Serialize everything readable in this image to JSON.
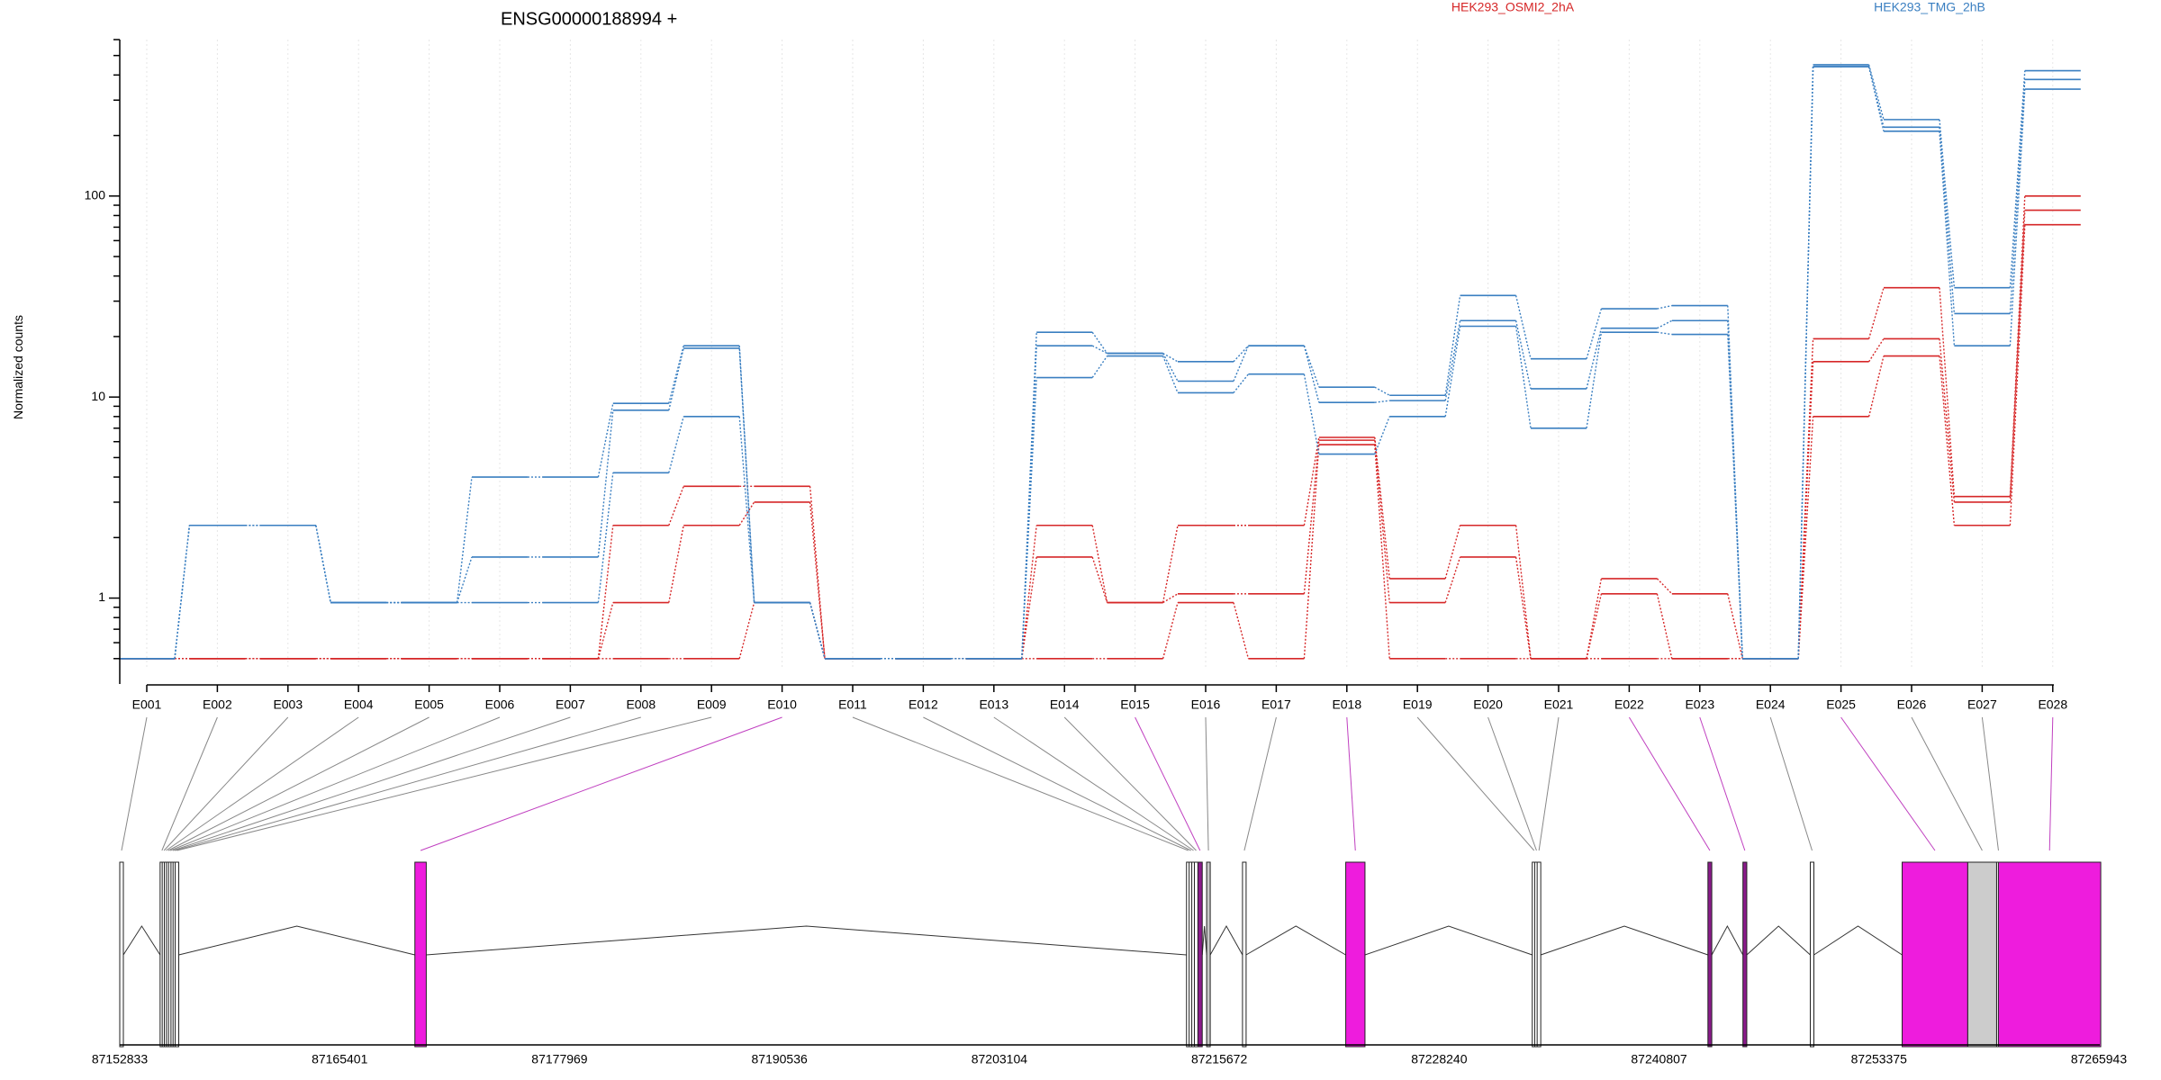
{
  "chart_data": {
    "type": "line",
    "title": "ENSG00000188994 +",
    "ylabel": "Normalized counts",
    "yscale": "log",
    "ylim": [
      0.45,
      600
    ],
    "yticks": [
      1,
      10,
      100
    ],
    "ytick_labels": [
      "1",
      "10",
      "100"
    ],
    "categories": [
      "E001",
      "E002",
      "E003",
      "E004",
      "E005",
      "E006",
      "E007",
      "E008",
      "E009",
      "E010",
      "E011",
      "E012",
      "E013",
      "E014",
      "E015",
      "E016",
      "E017",
      "E018",
      "E019",
      "E020",
      "E021",
      "E022",
      "E023",
      "E024",
      "E025",
      "E026",
      "E027",
      "E028"
    ],
    "legend": [
      {
        "label": "HEK293_OSMI2_2hA",
        "color": "#d62728"
      },
      {
        "label": "HEK293_TMG_2hB",
        "color": "#3a7fc1"
      }
    ],
    "series": [
      {
        "name": "HEK293_TMG_2hB",
        "color": "#3a7fc1",
        "values": [
          0.5,
          2.3,
          2.3,
          0.95,
          0.95,
          4,
          4,
          9.3,
          18,
          0.95,
          0.5,
          0.5,
          0.5,
          21,
          16.5,
          15,
          18,
          11.2,
          10.2,
          32,
          15.5,
          27.5,
          28.5,
          0.5,
          450,
          240,
          35,
          420
        ]
      },
      {
        "name": "HEK293_TMG_2hB",
        "color": "#3a7fc1",
        "values": [
          0.5,
          2.3,
          2.3,
          0.95,
          0.95,
          1.6,
          1.6,
          8.6,
          17.5,
          0.95,
          0.5,
          0.5,
          0.5,
          18,
          16.5,
          12,
          18,
          9.4,
          9.6,
          24,
          11,
          22,
          24,
          0.5,
          440,
          220,
          26,
          380
        ]
      },
      {
        "name": "HEK293_TMG_2hB",
        "color": "#3a7fc1",
        "values": [
          0.5,
          2.3,
          2.3,
          0.95,
          0.95,
          0.95,
          0.95,
          4.2,
          8,
          0.95,
          0.5,
          0.5,
          0.5,
          12.5,
          16,
          10.5,
          13,
          5.2,
          8,
          22.5,
          7,
          21,
          20.5,
          0.5,
          440,
          210,
          18,
          340
        ]
      },
      {
        "name": "HEK293_OSMI2_2hA",
        "color": "#d62728",
        "values": [
          0.5,
          0.5,
          0.5,
          0.5,
          0.5,
          0.5,
          0.5,
          2.3,
          3.6,
          3.6,
          0.5,
          0.5,
          0.5,
          2.3,
          0.95,
          2.3,
          2.3,
          6.3,
          1.25,
          2.3,
          0.5,
          1.25,
          1.05,
          0.5,
          19.5,
          35,
          3.2,
          100
        ]
      },
      {
        "name": "HEK293_OSMI2_2hA",
        "color": "#d62728",
        "values": [
          0.5,
          0.5,
          0.5,
          0.5,
          0.5,
          0.5,
          0.5,
          0.95,
          2.3,
          3,
          0.5,
          0.5,
          0.5,
          1.6,
          0.95,
          1.05,
          1.05,
          6.1,
          0.95,
          1.6,
          0.5,
          1.05,
          0.5,
          0.5,
          15,
          19.5,
          3,
          85
        ]
      },
      {
        "name": "HEK293_OSMI2_2hA",
        "color": "#d62728",
        "values": [
          0.5,
          0.5,
          0.5,
          0.5,
          0.5,
          0.5,
          0.5,
          0.5,
          0.5,
          0.95,
          0.5,
          0.5,
          0.5,
          0.5,
          0.5,
          0.95,
          0.5,
          5.8,
          0.5,
          0.5,
          0.5,
          0.5,
          0.5,
          0.5,
          8,
          16,
          2.3,
          72
        ]
      }
    ],
    "gene_model": {
      "coord_ticks": [
        "87152833",
        "87165401",
        "87177969",
        "87190536",
        "87203104",
        "87215672",
        "87228240",
        "87240807",
        "87253375",
        "87265943"
      ],
      "genomic_range": [
        87152833,
        87265943
      ],
      "exons": [
        {
          "id": "E001",
          "start": 87152833,
          "end": 87152875,
          "color": "#ffffff"
        },
        {
          "id": "E002",
          "start": 87155140,
          "end": 87155200,
          "color": "#ffffff"
        },
        {
          "id": "E003",
          "start": 87155260,
          "end": 87155320,
          "color": "#ffffff"
        },
        {
          "id": "E004",
          "start": 87155380,
          "end": 87155440,
          "color": "#ffffff"
        },
        {
          "id": "E005",
          "start": 87155500,
          "end": 87155560,
          "color": "#ffffff"
        },
        {
          "id": "E006",
          "start": 87155620,
          "end": 87155700,
          "color": "#ffffff"
        },
        {
          "id": "E007",
          "start": 87155760,
          "end": 87155820,
          "color": "#ffffff"
        },
        {
          "id": "E008",
          "start": 87155880,
          "end": 87155940,
          "color": "#ffffff"
        },
        {
          "id": "E009",
          "start": 87156000,
          "end": 87156060,
          "color": "#ffffff"
        },
        {
          "id": "E010",
          "start": 87169700,
          "end": 87170350,
          "color": "#ee1cdd"
        },
        {
          "id": "E011",
          "start": 87213800,
          "end": 87213870,
          "color": "#ffffff"
        },
        {
          "id": "E012",
          "start": 87213950,
          "end": 87214020,
          "color": "#ffffff"
        },
        {
          "id": "E013",
          "start": 87214100,
          "end": 87214170,
          "color": "#ffffff"
        },
        {
          "id": "E014",
          "start": 87214250,
          "end": 87214320,
          "color": "#ffffff"
        },
        {
          "id": "E015",
          "start": 87214450,
          "end": 87214700,
          "color": "#8b1a8b"
        },
        {
          "id": "E016",
          "start": 87214950,
          "end": 87215100,
          "color": "#c8c8c8"
        },
        {
          "id": "E017",
          "start": 87217000,
          "end": 87217200,
          "color": "#ffffff"
        },
        {
          "id": "E018",
          "start": 87222900,
          "end": 87224000,
          "color": "#ee1cdd"
        },
        {
          "id": "E019",
          "start": 87233560,
          "end": 87233640,
          "color": "#ffffff"
        },
        {
          "id": "E020",
          "start": 87233700,
          "end": 87233780,
          "color": "#ffffff"
        },
        {
          "id": "E021",
          "start": 87233840,
          "end": 87233920,
          "color": "#ffffff"
        },
        {
          "id": "E022",
          "start": 87243600,
          "end": 87243820,
          "color": "#8b1a8b"
        },
        {
          "id": "E023",
          "start": 87245600,
          "end": 87245820,
          "color": "#8b1a8b"
        },
        {
          "id": "E024",
          "start": 87249450,
          "end": 87249600,
          "color": "#ffffff"
        },
        {
          "id": "E025",
          "start": 87254700,
          "end": 87258450,
          "color": "#ee1cdd"
        },
        {
          "id": "E026",
          "start": 87258450,
          "end": 87260100,
          "color": "#cccccc"
        },
        {
          "id": "E027",
          "start": 87260100,
          "end": 87260200,
          "color": "#ffffff"
        },
        {
          "id": "E028",
          "start": 87260200,
          "end": 87266050,
          "color": "#ee1cdd"
        }
      ]
    }
  }
}
